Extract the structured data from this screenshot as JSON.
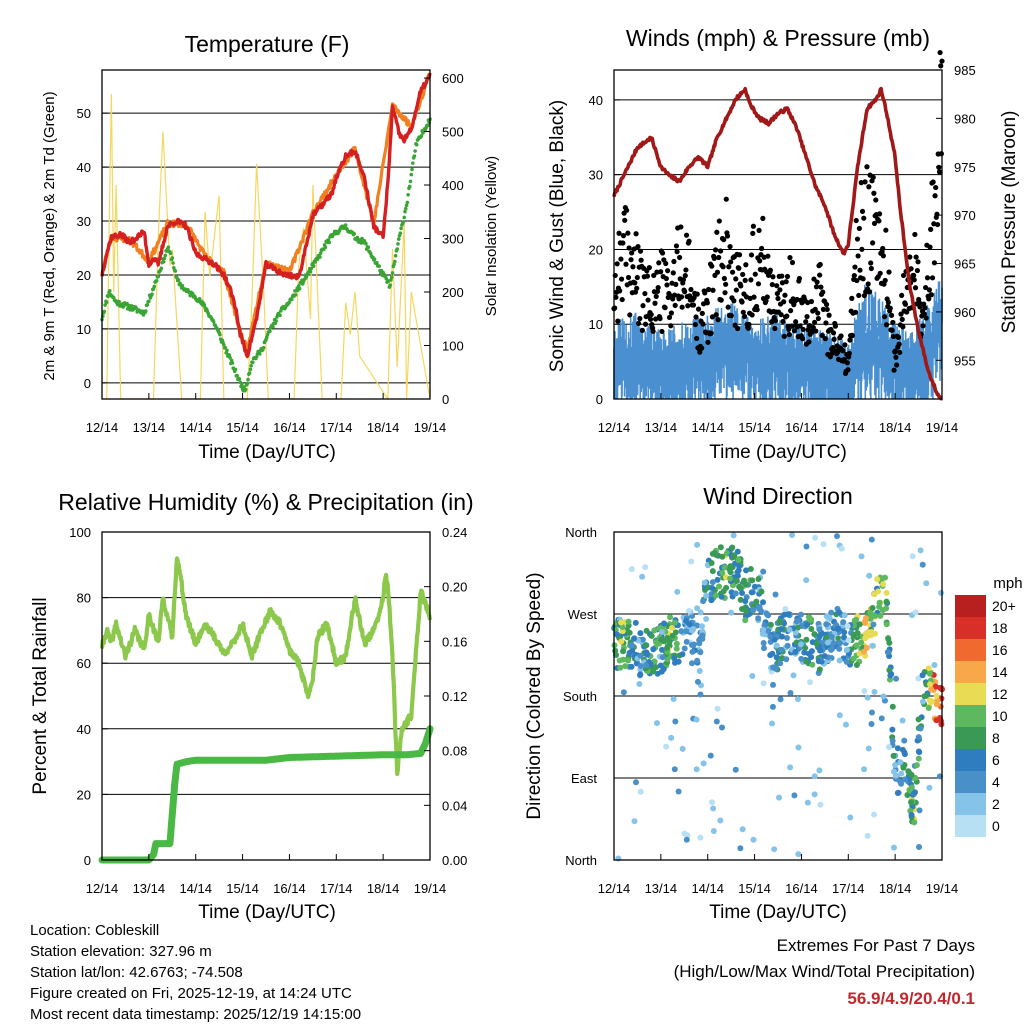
{
  "colors": {
    "temp_red": "#d42020",
    "temp_orange": "#f08020",
    "dewpoint_green": "#3aa535",
    "solar_yellow": "#f5d760",
    "wind_blue": "#4a90d0",
    "gust_black": "#000000",
    "pressure_maroon": "#a01818",
    "rh_lightgreen": "#8cc84b",
    "precip_green": "#4ab845",
    "extremes_red": "#c0282e"
  },
  "time_ticks": [
    "12/14",
    "13/14",
    "14/14",
    "15/14",
    "16/14",
    "17/14",
    "18/14",
    "19/14"
  ],
  "chart_data": [
    {
      "type": "line",
      "id": "temperature",
      "title": "Temperature (F)",
      "xlabel": "Time (Day/UTC)",
      "ylabel": "2m & 9m T (Red, Orange) & 2m Td (Green)",
      "ylabel2": "Solar Insolation (Yellow)",
      "ylim": [
        -3,
        58
      ],
      "y_ticks": [
        "0",
        "10",
        "20",
        "30",
        "40",
        "50"
      ],
      "ylim2": [
        0,
        615
      ],
      "y2_ticks": [
        "0",
        "100",
        "200",
        "300",
        "400",
        "500",
        "600"
      ],
      "series": [
        {
          "name": "2m T",
          "x": [
            0,
            0.1,
            0.2,
            0.4,
            0.6,
            0.9,
            1.0,
            1.1,
            1.2,
            1.4,
            1.6,
            1.8,
            2.0,
            2.2,
            2.4,
            2.6,
            2.75,
            2.85,
            2.95,
            3.1,
            3.3,
            3.5,
            3.7,
            3.9,
            4.0,
            4.2,
            4.5,
            4.7,
            4.9,
            5.0,
            5.2,
            5.4,
            5.6,
            5.8,
            6.0,
            6.1,
            6.2,
            6.35,
            6.45,
            6.6,
            6.8,
            7.0
          ],
          "values": [
            20,
            24,
            27,
            27.5,
            26,
            28,
            22,
            23,
            22,
            29,
            30,
            29,
            24,
            23,
            22,
            20,
            17,
            14,
            9,
            5,
            12,
            22,
            21,
            20,
            20,
            19.5,
            31,
            33,
            35,
            38,
            42,
            43,
            38,
            29,
            27,
            37,
            51,
            46,
            45,
            47,
            54,
            57
          ]
        },
        {
          "name": "9m T",
          "x": [
            0,
            0.2,
            0.6,
            1.0,
            1.4,
            1.8,
            2.2,
            2.6,
            2.95,
            3.1,
            3.5,
            4.0,
            4.5,
            5.0,
            5.4,
            5.8,
            6.2,
            6.6,
            7.0
          ],
          "values": [
            20.5,
            27,
            26.5,
            22.5,
            29.5,
            29.5,
            23.5,
            20.5,
            9.5,
            6,
            22.5,
            20.5,
            31.5,
            38.5,
            43.5,
            29.5,
            51.5,
            47.5,
            57.5
          ]
        },
        {
          "name": "2m Td",
          "x": [
            0,
            0.15,
            0.3,
            0.6,
            0.9,
            1.2,
            1.4,
            1.5,
            1.6,
            1.8,
            2.0,
            2.2,
            2.4,
            2.6,
            2.8,
            2.95,
            3.05,
            3.2,
            3.4,
            3.6,
            3.8,
            4.0,
            4.3,
            4.6,
            4.8,
            5.0,
            5.2,
            5.4,
            5.6,
            5.8,
            6.0,
            6.15,
            6.3,
            6.5,
            6.7,
            7.0
          ],
          "values": [
            12,
            17,
            15,
            14,
            13,
            20,
            25,
            23,
            19,
            17,
            16,
            14,
            11,
            7,
            3,
            0,
            -1.5,
            4,
            6,
            10,
            13,
            15,
            19,
            23,
            26,
            28,
            29,
            27,
            26,
            23,
            20,
            18,
            25,
            33,
            44,
            49
          ]
        },
        {
          "name": "Solar Insolation",
          "axis": "y2",
          "x": [
            0.1,
            0.15,
            0.2,
            0.25,
            0.3,
            0.4,
            1.1,
            1.2,
            1.3,
            1.45,
            1.5,
            1.7,
            2.1,
            2.2,
            2.3,
            2.5,
            2.6,
            3.1,
            3.2,
            3.3,
            3.45,
            3.5,
            3.55,
            4.1,
            4.2,
            4.3,
            4.45,
            4.5,
            4.7,
            5.1,
            5.2,
            5.3,
            5.4,
            5.5,
            6.1,
            6.2,
            6.3,
            6.45,
            6.5,
            6.6,
            7.0
          ],
          "values": [
            0,
            300,
            570,
            200,
            400,
            0,
            0,
            300,
            500,
            250,
            280,
            0,
            0,
            350,
            230,
            380,
            0,
            0,
            180,
            440,
            200,
            100,
            0,
            0,
            250,
            320,
            150,
            400,
            0,
            0,
            180,
            120,
            200,
            80,
            0,
            280,
            60,
            330,
            0,
            200,
            0
          ]
        }
      ]
    },
    {
      "type": "scatter",
      "id": "winds",
      "title": "Winds (mph) & Pressure (mb)",
      "xlabel": "Time (Day/UTC)",
      "ylabel": "Sonic Wind & Gust (Blue, Black)",
      "ylabel2": "Station Pressure (Maroon)",
      "ylim": [
        0,
        44
      ],
      "y_ticks": [
        "0",
        "10",
        "20",
        "30",
        "40"
      ],
      "ylim2": [
        951,
        985
      ],
      "y2_ticks": [
        "955",
        "960",
        "965",
        "970",
        "975",
        "980",
        "985"
      ],
      "series": [
        {
          "name": "Sonic Wind (blue band top)",
          "x": [
            0,
            0.5,
            1.0,
            1.5,
            2.0,
            2.5,
            3.0,
            3.5,
            4.0,
            4.5,
            5.0,
            5.3,
            5.6,
            6.0,
            6.3,
            6.5,
            6.7,
            7.0
          ],
          "values": [
            8,
            9,
            7,
            8,
            9,
            10,
            8,
            9,
            8,
            7,
            6,
            12,
            11,
            8,
            7,
            8,
            10,
            13
          ]
        },
        {
          "name": "Gust (black dots)",
          "x": [
            0,
            0.2,
            0.4,
            0.6,
            0.8,
            1.0,
            1.2,
            1.4,
            1.6,
            1.8,
            2.0,
            2.2,
            2.4,
            2.6,
            2.8,
            3.0,
            3.2,
            3.4,
            3.6,
            3.8,
            4.0,
            4.2,
            4.4,
            4.6,
            4.8,
            5.0,
            5.2,
            5.4,
            5.6,
            5.8,
            6.0,
            6.2,
            6.4,
            6.6,
            6.8,
            7.0
          ],
          "values": [
            15,
            20,
            18,
            14,
            13,
            15,
            14,
            18,
            16,
            10,
            12,
            17,
            20,
            15,
            14,
            18,
            19,
            14,
            12,
            15,
            13,
            11,
            14,
            9,
            7,
            5,
            20,
            24,
            22,
            17,
            5,
            14,
            18,
            10,
            25,
            38
          ]
        },
        {
          "name": "Station Pressure",
          "axis": "y2",
          "x": [
            0,
            0.2,
            0.5,
            0.8,
            1.0,
            1.2,
            1.4,
            1.6,
            1.8,
            2.0,
            2.2,
            2.4,
            2.6,
            2.8,
            2.9,
            3.1,
            3.3,
            3.5,
            3.7,
            3.9,
            4.1,
            4.3,
            4.5,
            4.7,
            4.9,
            5.0,
            5.2,
            5.4,
            5.6,
            5.7,
            5.8,
            6.0,
            6.1,
            6.2,
            6.3,
            6.5,
            6.7,
            6.9,
            7.0
          ],
          "values": [
            972,
            974,
            977,
            978,
            975,
            974,
            973.5,
            975,
            976,
            975,
            978,
            980,
            982,
            983,
            981.5,
            980,
            979.5,
            980.5,
            981,
            979,
            976,
            973,
            971,
            968,
            966,
            967,
            975,
            981,
            982,
            983,
            981,
            976,
            971,
            967,
            963,
            958,
            954,
            951.5,
            951
          ]
        }
      ]
    },
    {
      "type": "line",
      "id": "humidity",
      "title": "Relative Humidity (%) & Precipitation (in)",
      "xlabel": "Time (Day/UTC)",
      "ylabel": "Percent & Total Rainfall",
      "ylim": [
        0,
        100
      ],
      "y_ticks": [
        "0",
        "20",
        "40",
        "60",
        "80",
        "100"
      ],
      "ylim2": [
        0,
        0.24
      ],
      "y2_ticks": [
        "0.00",
        "0.04",
        "0.08",
        "0.12",
        "0.16",
        "0.20",
        "0.24"
      ],
      "series": [
        {
          "name": "Relative Humidity",
          "x": [
            0,
            0.1,
            0.2,
            0.3,
            0.5,
            0.7,
            0.9,
            1.0,
            1.2,
            1.3,
            1.5,
            1.6,
            1.7,
            1.8,
            1.9,
            2.0,
            2.2,
            2.4,
            2.6,
            2.8,
            3.0,
            3.2,
            3.4,
            3.6,
            3.8,
            4.0,
            4.2,
            4.4,
            4.5,
            4.6,
            4.8,
            5.0,
            5.2,
            5.4,
            5.6,
            5.8,
            5.9,
            6.0,
            6.05,
            6.1,
            6.2,
            6.3,
            6.4,
            6.6,
            6.8,
            6.9,
            7.0
          ],
          "values": [
            65,
            70,
            66,
            72,
            62,
            70,
            64,
            75,
            66,
            80,
            68,
            93,
            84,
            74,
            70,
            66,
            72,
            68,
            63,
            66,
            72,
            62,
            70,
            76,
            72,
            64,
            60,
            50,
            56,
            68,
            72,
            60,
            62,
            80,
            66,
            70,
            74,
            80,
            87,
            84,
            62,
            26,
            40,
            44,
            82,
            78,
            74
          ]
        },
        {
          "name": "Total Precipitation",
          "axis": "y2",
          "x": [
            0,
            1.0,
            1.1,
            1.15,
            1.3,
            1.45,
            1.55,
            1.6,
            1.8,
            2.0,
            3.5,
            4.0,
            5.0,
            6.0,
            6.5,
            6.8,
            6.9,
            7.0
          ],
          "values": [
            0,
            0,
            0.004,
            0.012,
            0.012,
            0.012,
            0.055,
            0.07,
            0.072,
            0.073,
            0.073,
            0.075,
            0.076,
            0.077,
            0.077,
            0.078,
            0.085,
            0.096
          ]
        }
      ]
    },
    {
      "type": "scatter",
      "id": "wind_direction",
      "title": "Wind Direction",
      "xlabel": "Time (Day/UTC)",
      "ylabel": "Direction (Colored By Speed)",
      "y_ticks": [
        "North",
        "East",
        "South",
        "West",
        "North"
      ],
      "ylim": [
        0,
        360
      ],
      "legend_title": "mph",
      "legend_labels": [
        "0",
        "2",
        "4",
        "6",
        "8",
        "10",
        "12",
        "14",
        "16",
        "18",
        "20+"
      ],
      "legend_colors": [
        "#b8e0f5",
        "#85c3e8",
        "#4a90c8",
        "#2f7dbf",
        "#3a9a55",
        "#5db860",
        "#e8dc55",
        "#f8a848",
        "#f06a30",
        "#d83028",
        "#b82020"
      ],
      "series": [
        {
          "name": "Wind direction (deg)",
          "x": [
            0,
            0.2,
            0.4,
            0.6,
            0.8,
            1.0,
            1.2,
            1.4,
            1.6,
            1.8,
            2.0,
            2.2,
            2.4,
            2.6,
            2.8,
            3.0,
            3.2,
            3.4,
            3.6,
            3.8,
            4.0,
            4.2,
            4.4,
            4.6,
            4.8,
            5.0,
            5.2,
            5.4,
            5.6,
            5.8,
            6.0,
            6.2,
            6.4,
            6.6,
            6.8,
            7.0
          ],
          "values": [
            238,
            235,
            240,
            220,
            235,
            230,
            240,
            238,
            250,
            215,
            300,
            320,
            310,
            320,
            290,
            300,
            260,
            230,
            240,
            250,
            245,
            240,
            230,
            245,
            250,
            240,
            240,
            250,
            280,
            300,
            90,
            110,
            60,
            200,
            180,
            175
          ]
        },
        {
          "name": "Speed (mph)",
          "x": [
            0,
            0.2,
            0.4,
            0.6,
            0.8,
            1.0,
            1.2,
            1.4,
            1.6,
            1.8,
            2.0,
            2.2,
            2.4,
            2.6,
            2.8,
            3.0,
            3.2,
            3.4,
            3.6,
            3.8,
            4.0,
            4.2,
            4.4,
            4.6,
            4.8,
            5.0,
            5.2,
            5.4,
            5.6,
            5.8,
            6.0,
            6.2,
            6.4,
            6.6,
            6.8,
            7.0
          ],
          "values": [
            8,
            10,
            6,
            4,
            9,
            7,
            10,
            6,
            3,
            4,
            5,
            8,
            10,
            7,
            8,
            6,
            4,
            5,
            6,
            3,
            6,
            8,
            5,
            4,
            6,
            3,
            10,
            12,
            9,
            10,
            4,
            6,
            9,
            5,
            14,
            18
          ]
        }
      ]
    }
  ],
  "footer": {
    "location": "Location: Cobleskill",
    "elevation": "Station elevation: 327.96 m",
    "latlon": "Station lat/lon: 42.6763; -74.508",
    "created": "Figure created on Fri, 2025-12-19, at 14:24 UTC",
    "recent": "Most recent data timestamp: 2025/12/19 14:15:00"
  },
  "extremes": {
    "title": "Extremes For Past 7 Days",
    "subtitle": "(High/Low/Max Wind/Total Precipitation)",
    "values": "56.9/4.9/20.4/0.1"
  }
}
